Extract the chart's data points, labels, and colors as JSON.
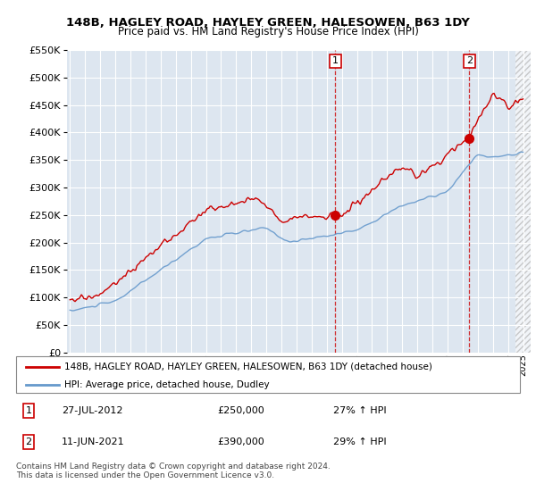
{
  "title": "148B, HAGLEY ROAD, HAYLEY GREEN, HALESOWEN, B63 1DY",
  "subtitle": "Price paid vs. HM Land Registry's House Price Index (HPI)",
  "legend_line1": "148B, HAGLEY ROAD, HAYLEY GREEN, HALESOWEN, B63 1DY (detached house)",
  "legend_line2": "HPI: Average price, detached house, Dudley",
  "sale1_date": "27-JUL-2012",
  "sale1_price": 250000,
  "sale1_hpi_pct": "27% ↑ HPI",
  "sale2_date": "11-JUN-2021",
  "sale2_price": 390000,
  "sale2_hpi_pct": "29% ↑ HPI",
  "footer": "Contains HM Land Registry data © Crown copyright and database right 2024.\nThis data is licensed under the Open Government Licence v3.0.",
  "red_color": "#cc0000",
  "blue_color": "#6699cc",
  "bg_color": "#dde6f0",
  "ylim": [
    0,
    550000
  ],
  "yticks": [
    0,
    50000,
    100000,
    150000,
    200000,
    250000,
    300000,
    350000,
    400000,
    450000,
    500000,
    550000
  ],
  "sale1_x": 2012.57,
  "sale2_x": 2021.44,
  "xmin": 1995,
  "xmax": 2025
}
